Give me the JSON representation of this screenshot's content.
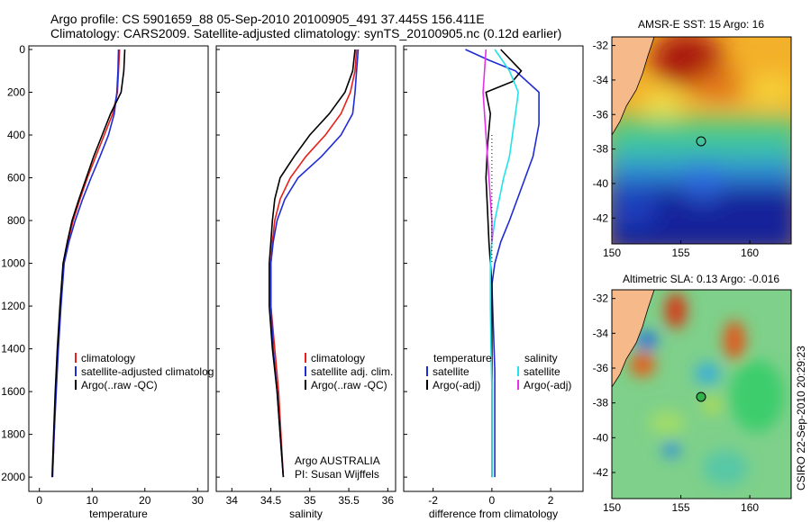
{
  "header": {
    "line1": "Argo profile: CS 5901659_88 05-Sep-2010 20100905_491 37.445S 156.411E",
    "line2": "Climatology: CARS2009. Satellite-adjusted climatology: synTS_20100905.nc (0.12d earlier)"
  },
  "colors": {
    "climatology": "#e8201a",
    "satellite": "#1f2bd6",
    "argo": "#000000",
    "temp_diff_sat": "#1f2bd6",
    "sal_diff_sat": "#22e3e8",
    "sal_diff_argo": "#e233e6",
    "land": "#f5b98a"
  },
  "chart_data": [
    {
      "type": "line",
      "id": "temperature",
      "xlabel": "temperature",
      "ylabel": "",
      "xlim": [
        -2,
        32
      ],
      "ylim": [
        2050,
        0
      ],
      "xticks": [
        "0",
        "10",
        "20",
        "30"
      ],
      "yticks": [
        "0",
        "200",
        "400",
        "600",
        "800",
        "1000",
        "1200",
        "1400",
        "1600",
        "1800",
        "2000"
      ],
      "legend": [
        "climatology",
        "satellite-adjusted climatolog",
        "Argo(..raw -QC)"
      ],
      "series": [
        {
          "name": "climatology",
          "color_key": "climatology",
          "x": [
            15.2,
            15.0,
            14.8,
            13.9,
            12.3,
            10.7,
            9.1,
            7.7,
            6.4,
            5.4,
            4.6,
            4.0,
            3.5,
            3.1,
            2.8,
            2.5
          ],
          "y": [
            0,
            100,
            200,
            300,
            400,
            500,
            600,
            700,
            800,
            900,
            1000,
            1200,
            1400,
            1600,
            1800,
            2000
          ]
        },
        {
          "name": "satellite-adjusted climatolog",
          "color_key": "satellite",
          "x": [
            15.0,
            14.9,
            14.7,
            14.2,
            13.1,
            11.5,
            9.8,
            8.2,
            6.8,
            5.6,
            4.7,
            4.1,
            3.6,
            3.2,
            2.8,
            2.5
          ],
          "y": [
            0,
            100,
            200,
            300,
            400,
            500,
            600,
            700,
            800,
            900,
            1000,
            1200,
            1400,
            1600,
            1800,
            2000
          ]
        },
        {
          "name": "Argo(..raw -QC)",
          "color_key": "argo",
          "x": [
            16.2,
            16.0,
            15.5,
            13.5,
            11.9,
            10.3,
            8.9,
            7.5,
            6.2,
            5.3,
            4.5,
            3.9,
            3.4,
            3.0,
            2.7,
            2.4
          ],
          "y": [
            0,
            100,
            200,
            300,
            400,
            500,
            600,
            700,
            800,
            900,
            1000,
            1200,
            1400,
            1600,
            1800,
            2000
          ]
        }
      ]
    },
    {
      "type": "line",
      "id": "salinity",
      "xlabel": "salinity",
      "ylabel": "",
      "xlim": [
        33.8,
        36.1
      ],
      "ylim": [
        2050,
        0
      ],
      "xticks": [
        "34",
        "34.5",
        "35",
        "35.5",
        "36"
      ],
      "legend": [
        "climatology",
        "satellite adj. clim.",
        "Argo(..raw -QC)"
      ],
      "notes": [
        "Argo AUSTRALIA",
        "PI: Susan Wijffels"
      ],
      "series": [
        {
          "name": "climatology",
          "color_key": "climatology",
          "x": [
            35.6,
            35.58,
            35.52,
            35.4,
            35.2,
            34.95,
            34.75,
            34.62,
            34.55,
            34.52,
            34.5,
            34.5,
            34.55,
            34.6,
            34.63,
            34.66
          ],
          "y": [
            0,
            100,
            200,
            300,
            400,
            500,
            600,
            700,
            800,
            900,
            1000,
            1200,
            1400,
            1600,
            1800,
            2000
          ]
        },
        {
          "name": "satellite adj. clim.",
          "color_key": "satellite",
          "x": [
            35.62,
            35.6,
            35.58,
            35.55,
            35.4,
            35.15,
            34.85,
            34.68,
            34.58,
            34.53,
            34.5,
            34.5,
            34.53,
            34.58,
            34.62,
            34.66
          ],
          "y": [
            0,
            100,
            200,
            300,
            400,
            500,
            600,
            700,
            800,
            900,
            1000,
            1200,
            1400,
            1600,
            1800,
            2000
          ]
        },
        {
          "name": "Argo(..raw -QC)",
          "color_key": "argo",
          "x": [
            35.58,
            35.55,
            35.45,
            35.25,
            35.0,
            34.8,
            34.62,
            34.55,
            34.52,
            34.5,
            34.48,
            34.48,
            34.52,
            34.58,
            34.62,
            34.66
          ],
          "y": [
            0,
            100,
            200,
            300,
            400,
            500,
            600,
            700,
            800,
            900,
            1000,
            1200,
            1400,
            1600,
            1800,
            2000
          ]
        }
      ]
    },
    {
      "type": "line",
      "id": "difference",
      "xlabel": "difference from climatology",
      "ylabel": "",
      "xlim": [
        -3,
        3.1
      ],
      "ylim": [
        2050,
        0
      ],
      "xticks": [
        "-2",
        "0",
        "2"
      ],
      "legend": [
        "temperature",
        "satellite",
        "Argo(-adj)",
        "salinity",
        "satellite",
        "Argo(-adj)"
      ],
      "series": [
        {
          "name": "temperature satellite",
          "color_key": "temp_diff_sat",
          "x": [
            -0.9,
            -0.1,
            0.8,
            1.6,
            1.6,
            1.4,
            1.0,
            0.6,
            0.3,
            0.1,
            0.0,
            0.05,
            0.1,
            0.1,
            0.1,
            0.1
          ],
          "y": [
            0,
            50,
            100,
            200,
            350,
            500,
            650,
            800,
            900,
            1000,
            1100,
            1300,
            1500,
            1700,
            1900,
            2000
          ]
        },
        {
          "name": "temperature Argo(-adj)",
          "color_key": "argo",
          "x": [
            0.3,
            1.0,
            0.7,
            -0.2,
            -0.05,
            -0.15,
            -0.2,
            -0.15,
            -0.1,
            -0.05,
            0.0,
            0.0,
            0.0,
            0.0,
            0.0,
            0.0
          ],
          "y": [
            0,
            100,
            150,
            200,
            300,
            450,
            600,
            750,
            900,
            1000,
            1100,
            1300,
            1500,
            1700,
            1900,
            2000
          ]
        },
        {
          "name": "salinity satellite",
          "color_key": "sal_diff_sat",
          "x": [
            0.1,
            0.6,
            0.9,
            0.8,
            0.7,
            0.6,
            0.4,
            0.25,
            0.1,
            0.0,
            -0.05,
            -0.05,
            -0.03,
            0.0,
            0.0,
            0.0
          ],
          "y": [
            0,
            100,
            200,
            300,
            400,
            500,
            600,
            700,
            800,
            900,
            1000,
            1200,
            1400,
            1600,
            1800,
            2000
          ]
        },
        {
          "name": "salinity Argo(-adj)",
          "color_key": "sal_diff_argo",
          "x": [
            -0.2,
            -0.25,
            -0.3,
            -0.25,
            -0.2,
            -0.15,
            -0.1,
            -0.05,
            0.0,
            0.0
          ],
          "y": [
            0,
            100,
            200,
            300,
            400,
            500,
            600,
            700,
            800,
            900
          ]
        }
      ]
    },
    {
      "type": "heatmap",
      "id": "sst_map",
      "title": "AMSR-E SST: 15 Argo: 16",
      "xlim": [
        150,
        163
      ],
      "ylim": [
        -43.5,
        -31.5
      ],
      "xticks": [
        "150",
        "155",
        "160"
      ],
      "yticks": [
        "-32",
        "-34",
        "-36",
        "-38",
        "-40",
        "-42"
      ],
      "marker": {
        "lon": 156.411,
        "lat": -37.445
      }
    },
    {
      "type": "heatmap",
      "id": "sla_map",
      "title": "Altimetric SLA: 0.13 Argo: -0.016",
      "xlim": [
        150,
        163
      ],
      "ylim": [
        -43.5,
        -31.5
      ],
      "xticks": [
        "150",
        "155",
        "160"
      ],
      "yticks": [
        "-32",
        "-34",
        "-36",
        "-38",
        "-40",
        "-42"
      ],
      "marker": {
        "lon": 156.411,
        "lat": -37.445
      }
    }
  ],
  "footer": {
    "credit": "CSIRO 22-Sep-2010 20:29:23"
  }
}
